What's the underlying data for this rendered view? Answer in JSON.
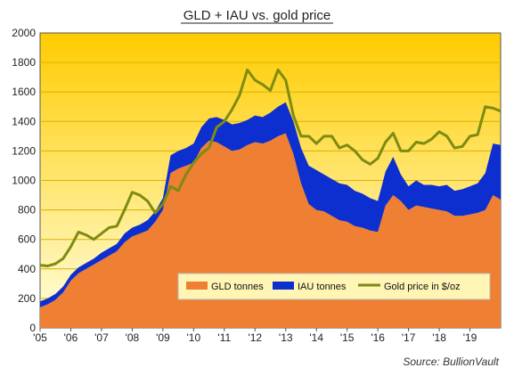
{
  "colors": {
    "gld": "#EE7F33",
    "iau": "#0D2FD0",
    "gold_line": "#7E8B12",
    "bg_top": "#FFCC00",
    "bg_bottom": "#FFFFE0"
  },
  "chart_data": {
    "type": "area",
    "title": "GLD + IAU vs. gold price",
    "xlabel": "",
    "ylabel": "",
    "source": "Source:  BullionVault",
    "ylim": [
      0,
      2000
    ],
    "yticks": [
      "0",
      "200",
      "400",
      "600",
      "800",
      "1000",
      "1200",
      "1400",
      "1600",
      "1800",
      "2000"
    ],
    "xlim": [
      2005.0,
      2020.0
    ],
    "xticks": [
      "'05",
      "'06",
      "'07",
      "'08",
      "'09",
      "'10",
      "'11",
      "'12",
      "'13",
      "'14",
      "'15",
      "'16",
      "'17",
      "'18",
      "'19"
    ],
    "legend_position": "bottom-right",
    "grid": true,
    "series": [
      {
        "name": "GLD tonnes",
        "kind": "area",
        "x": [
          2005.0,
          2005.25,
          2005.5,
          2005.75,
          2006.0,
          2006.25,
          2006.5,
          2006.75,
          2007.0,
          2007.25,
          2007.5,
          2007.75,
          2008.0,
          2008.25,
          2008.5,
          2008.75,
          2009.0,
          2009.25,
          2009.5,
          2009.75,
          2010.0,
          2010.25,
          2010.5,
          2010.75,
          2011.0,
          2011.25,
          2011.5,
          2011.75,
          2012.0,
          2012.25,
          2012.5,
          2012.75,
          2013.0,
          2013.25,
          2013.5,
          2013.75,
          2014.0,
          2014.25,
          2014.5,
          2014.75,
          2015.0,
          2015.25,
          2015.5,
          2015.75,
          2016.0,
          2016.25,
          2016.5,
          2016.75,
          2017.0,
          2017.25,
          2017.5,
          2017.75,
          2018.0,
          2018.25,
          2018.5,
          2018.75,
          2019.0,
          2019.25,
          2019.5,
          2019.75,
          2020.0
        ],
        "values": [
          140,
          160,
          190,
          240,
          320,
          370,
          400,
          430,
          460,
          490,
          520,
          580,
          620,
          640,
          660,
          720,
          800,
          1050,
          1080,
          1100,
          1120,
          1220,
          1270,
          1260,
          1230,
          1200,
          1210,
          1240,
          1260,
          1250,
          1270,
          1300,
          1320,
          1180,
          980,
          840,
          800,
          790,
          760,
          730,
          720,
          690,
          680,
          660,
          650,
          830,
          900,
          860,
          800,
          830,
          820,
          810,
          800,
          790,
          760,
          760,
          770,
          780,
          800,
          900,
          870
        ]
      },
      {
        "name": "IAU tonnes",
        "kind": "area",
        "x": [
          2005.0,
          2005.25,
          2005.5,
          2005.75,
          2006.0,
          2006.25,
          2006.5,
          2006.75,
          2007.0,
          2007.25,
          2007.5,
          2007.75,
          2008.0,
          2008.25,
          2008.5,
          2008.75,
          2009.0,
          2009.25,
          2009.5,
          2009.75,
          2010.0,
          2010.25,
          2010.5,
          2010.75,
          2011.0,
          2011.25,
          2011.5,
          2011.75,
          2012.0,
          2012.25,
          2012.5,
          2012.75,
          2013.0,
          2013.25,
          2013.5,
          2013.75,
          2014.0,
          2014.25,
          2014.5,
          2014.75,
          2015.0,
          2015.25,
          2015.5,
          2015.75,
          2016.0,
          2016.25,
          2016.5,
          2016.75,
          2017.0,
          2017.25,
          2017.5,
          2017.75,
          2018.0,
          2018.25,
          2018.5,
          2018.75,
          2019.0,
          2019.25,
          2019.5,
          2019.75,
          2020.0
        ],
        "values": [
          40,
          40,
          40,
          40,
          40,
          40,
          40,
          40,
          50,
          50,
          50,
          60,
          60,
          60,
          70,
          70,
          80,
          120,
          120,
          120,
          130,
          140,
          150,
          170,
          180,
          180,
          180,
          170,
          180,
          180,
          190,
          200,
          210,
          220,
          240,
          260,
          270,
          250,
          250,
          250,
          250,
          240,
          230,
          220,
          210,
          230,
          260,
          180,
          160,
          170,
          150,
          160,
          160,
          180,
          170,
          180,
          190,
          200,
          250,
          350,
          370
        ]
      },
      {
        "name": "Gold price in $/oz",
        "kind": "line",
        "x": [
          2005.0,
          2005.25,
          2005.5,
          2005.75,
          2006.0,
          2006.25,
          2006.5,
          2006.75,
          2007.0,
          2007.25,
          2007.5,
          2007.75,
          2008.0,
          2008.25,
          2008.5,
          2008.75,
          2009.0,
          2009.25,
          2009.5,
          2009.75,
          2010.0,
          2010.25,
          2010.5,
          2010.75,
          2011.0,
          2011.25,
          2011.5,
          2011.75,
          2012.0,
          2012.25,
          2012.5,
          2012.75,
          2013.0,
          2013.25,
          2013.5,
          2013.75,
          2014.0,
          2014.25,
          2014.5,
          2014.75,
          2015.0,
          2015.25,
          2015.5,
          2015.75,
          2016.0,
          2016.25,
          2016.5,
          2016.75,
          2017.0,
          2017.25,
          2017.5,
          2017.75,
          2018.0,
          2018.25,
          2018.5,
          2018.75,
          2019.0,
          2019.25,
          2019.5,
          2019.75,
          2020.0
        ],
        "values": [
          425,
          420,
          435,
          470,
          550,
          650,
          630,
          600,
          640,
          680,
          690,
          800,
          920,
          900,
          860,
          780,
          840,
          960,
          930,
          1040,
          1120,
          1180,
          1220,
          1360,
          1400,
          1480,
          1580,
          1750,
          1680,
          1650,
          1610,
          1750,
          1680,
          1440,
          1300,
          1300,
          1250,
          1300,
          1300,
          1220,
          1240,
          1200,
          1140,
          1110,
          1150,
          1260,
          1320,
          1200,
          1200,
          1260,
          1250,
          1280,
          1330,
          1300,
          1220,
          1230,
          1300,
          1310,
          1500,
          1490,
          1470
        ]
      }
    ]
  }
}
